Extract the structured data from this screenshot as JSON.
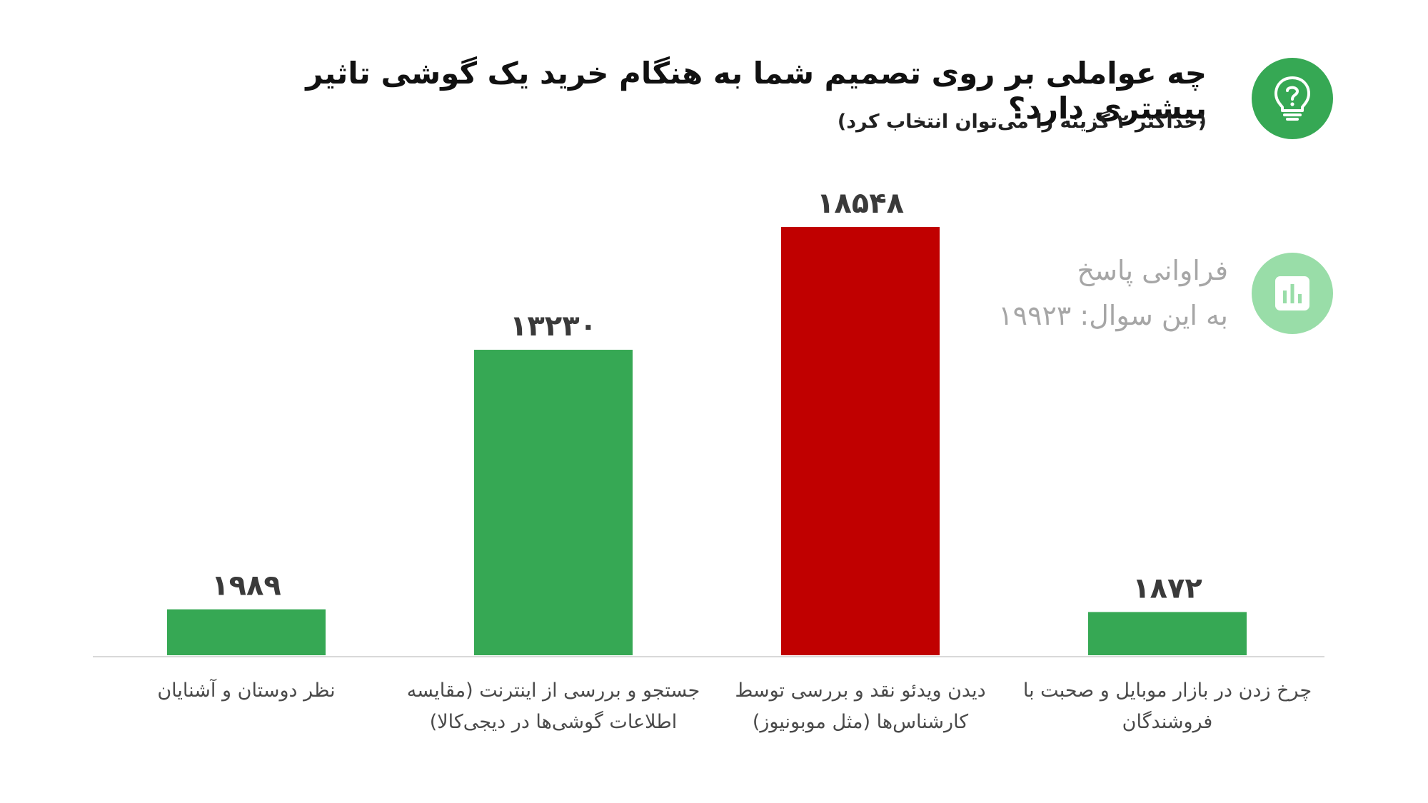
{
  "header": {
    "title": "چه عواملی بر روی تصمیم شما به هنگام خرید یک گوشی تاثیر بیشتری دارد؟",
    "subtitle": "(حداکثر ۲ گزینه را می‌توان انتخاب کرد)",
    "question_icon": "lightbulb-question-icon"
  },
  "stats": {
    "icon": "bar-chart-icon",
    "line1": "فراوانی پاسخ",
    "line2": "به این سوال: ۱۹۹۲۳"
  },
  "colors": {
    "bar_green": "#36a854",
    "bar_red": "#c00000",
    "icon_green": "#36a854",
    "icon_light_green": "#99dda8",
    "axis": "#d9d9d9",
    "value_text": "#3a3a3a"
  },
  "chart_data": {
    "type": "bar",
    "categories": [
      "نظر دوستان و آشنایان",
      "جستجو و بررسی از اینترنت (مقایسه اطلاعات گوشی‌ها در دیجی‌کالا)",
      "دیدن ویدئو نقد و بررسی توسط کارشناس‌ها (مثل موبونیوز)",
      "چرخ زدن در بازار موبایل و صحبت با فروشندگان"
    ],
    "category_lines": [
      [
        "نظر دوستان و آشنایان"
      ],
      [
        "جستجو و بررسی از اینترنت (مقایسه",
        "اطلاعات گوشی‌ها در دیجی‌کالا)"
      ],
      [
        "دیدن ویدئو نقد و بررسی توسط",
        "کارشناس‌ها (مثل موبونیوز)"
      ],
      [
        "چرخ زدن در بازار موبایل و صحبت با",
        "فروشندگان"
      ]
    ],
    "values": [
      1989,
      13230,
      18548,
      1872
    ],
    "value_labels": [
      "۱۹۸۹",
      "۱۳۲۳۰",
      "۱۸۵۴۸",
      "۱۸۷۲"
    ],
    "highlight_index": 2,
    "ylim": [
      0,
      18548
    ],
    "grid": false,
    "legend": "none",
    "title": "",
    "xlabel": "",
    "ylabel": ""
  }
}
